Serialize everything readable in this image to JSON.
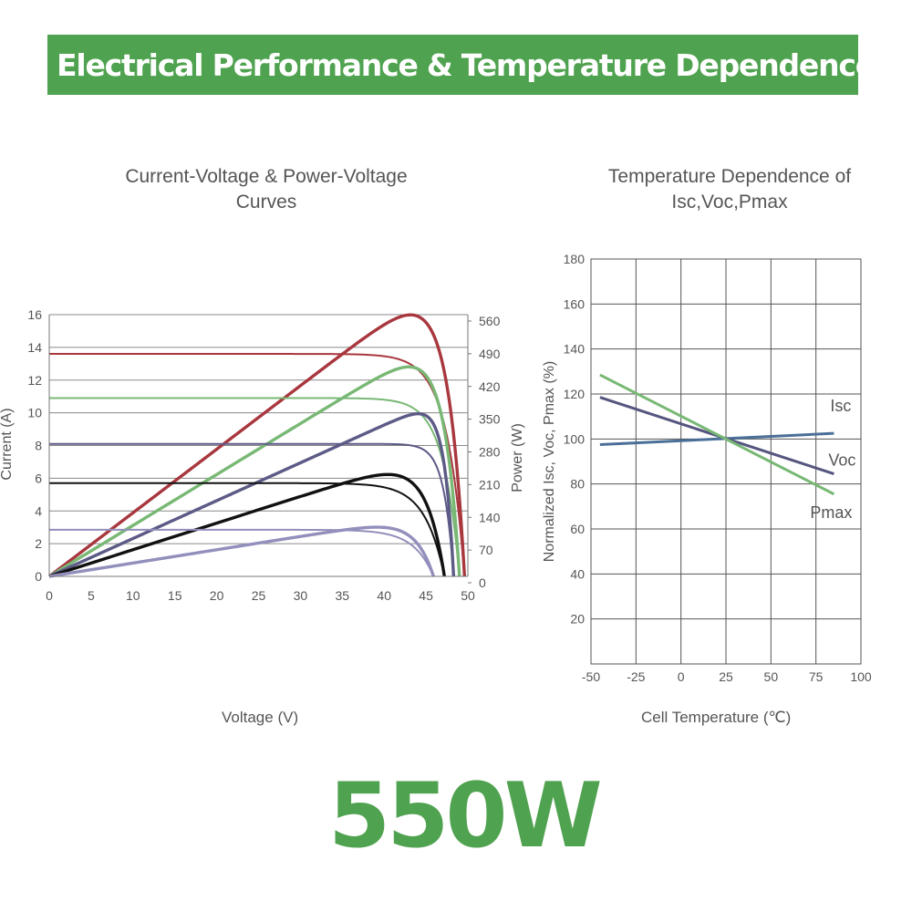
{
  "header": {
    "title": "Electrical Performance & Temperature Dependence"
  },
  "power_label": "550W",
  "colors": {
    "banner": "#4fa24f",
    "accent_text": "#4fa24f"
  },
  "chart_data": [
    {
      "type": "line",
      "title": "Current-Voltage & Power-Voltage Curves",
      "title_lines": [
        "Current-Voltage & Power-Voltage",
        "Curves"
      ],
      "xlabel": "Voltage (V)",
      "ylabel": "Current (A)",
      "y2label": "Power (W)",
      "xlim": [
        0,
        50
      ],
      "ylim": [
        0,
        16
      ],
      "y2lim": [
        0,
        560
      ],
      "xticks": [
        0,
        5,
        10,
        15,
        20,
        25,
        30,
        35,
        40,
        45,
        50
      ],
      "yticks": [
        0,
        2,
        4,
        6,
        8,
        10,
        12,
        14,
        16
      ],
      "y2ticks": [
        0,
        70,
        140,
        210,
        280,
        350,
        420,
        490,
        560
      ],
      "grid": true,
      "series": [
        {
          "color": "#a8373e",
          "isc": 13.6,
          "voc": 49.6,
          "vmp": 41.2,
          "pmax": 550
        },
        {
          "color": "#78b874",
          "isc": 10.9,
          "voc": 49.0,
          "vmp": 41.0,
          "pmax": 440
        },
        {
          "color": "#5c5a86",
          "isc": 8.1,
          "voc": 48.3,
          "vmp": 40.8,
          "pmax": 330
        },
        {
          "color": "#111111",
          "isc": 5.7,
          "voc": 47.2,
          "vmp": 40.6,
          "pmax": 218
        },
        {
          "color": "#938fbc",
          "isc": 2.85,
          "voc": 45.9,
          "vmp": 38.5,
          "pmax": 105
        }
      ]
    },
    {
      "type": "line",
      "title": "Temperature Dependence of Isc,Voc,Pmax",
      "title_lines": [
        "Temperature Dependence of",
        "Isc,Voc,Pmax"
      ],
      "xlabel": "Cell Temperature (℃)",
      "ylabel": "Normalized Isc, Voc, Pmax (%)",
      "xlim": [
        -50,
        100
      ],
      "ylim": [
        0,
        180
      ],
      "xticks": [
        -50,
        -25,
        0,
        25,
        50,
        75,
        100
      ],
      "yticks": [
        20,
        40,
        60,
        80,
        100,
        120,
        140,
        160,
        180
      ],
      "grid": true,
      "series": [
        {
          "name": "Isc",
          "color": "#4a6f98",
          "x": [
            -45,
            85
          ],
          "y": [
            97.5,
            102.5
          ]
        },
        {
          "name": "Voc",
          "color": "#55557f",
          "x": [
            -45,
            85
          ],
          "y": [
            118.5,
            84.5
          ]
        },
        {
          "name": "Pmax",
          "color": "#78b874",
          "x": [
            -45,
            85
          ],
          "y": [
            128.5,
            75.5
          ]
        }
      ]
    }
  ]
}
